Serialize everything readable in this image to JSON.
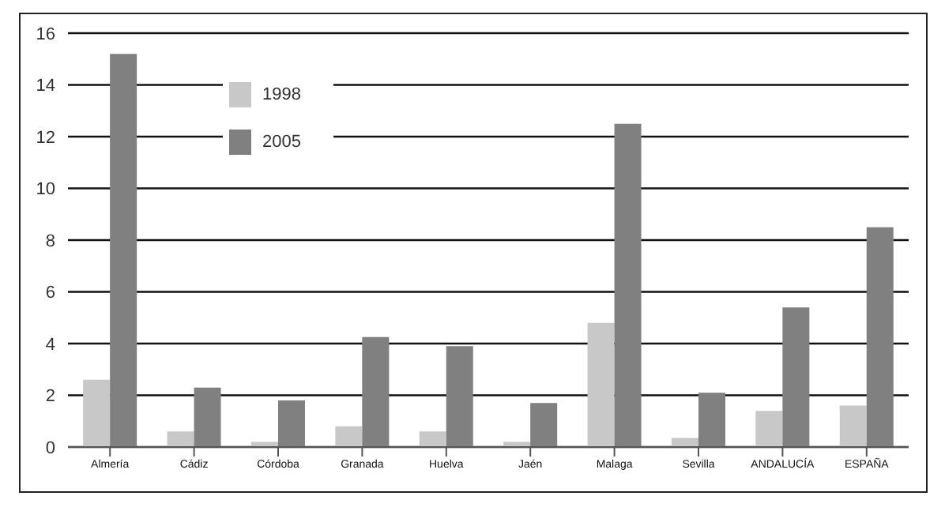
{
  "chart_data": {
    "type": "bar",
    "categories": [
      "Almería",
      "Cádiz",
      "Córdoba",
      "Granada",
      "Huelva",
      "Jaén",
      "Malaga",
      "Sevilla",
      "ANDALUCÍA",
      "ESPAÑA"
    ],
    "series": [
      {
        "name": "1998",
        "color": "#c8c8c8",
        "values": [
          2.6,
          0.6,
          0.2,
          0.8,
          0.6,
          0.2,
          4.8,
          0.35,
          1.4,
          1.6
        ]
      },
      {
        "name": "2005",
        "color": "#808080",
        "values": [
          15.2,
          2.3,
          1.8,
          4.25,
          3.9,
          1.7,
          12.5,
          2.1,
          5.4,
          8.5
        ]
      }
    ],
    "ylim": [
      0,
      16
    ],
    "yticks": [
      0,
      2,
      4,
      6,
      8,
      10,
      12,
      14,
      16
    ],
    "grid": "y",
    "legend": "top left"
  }
}
